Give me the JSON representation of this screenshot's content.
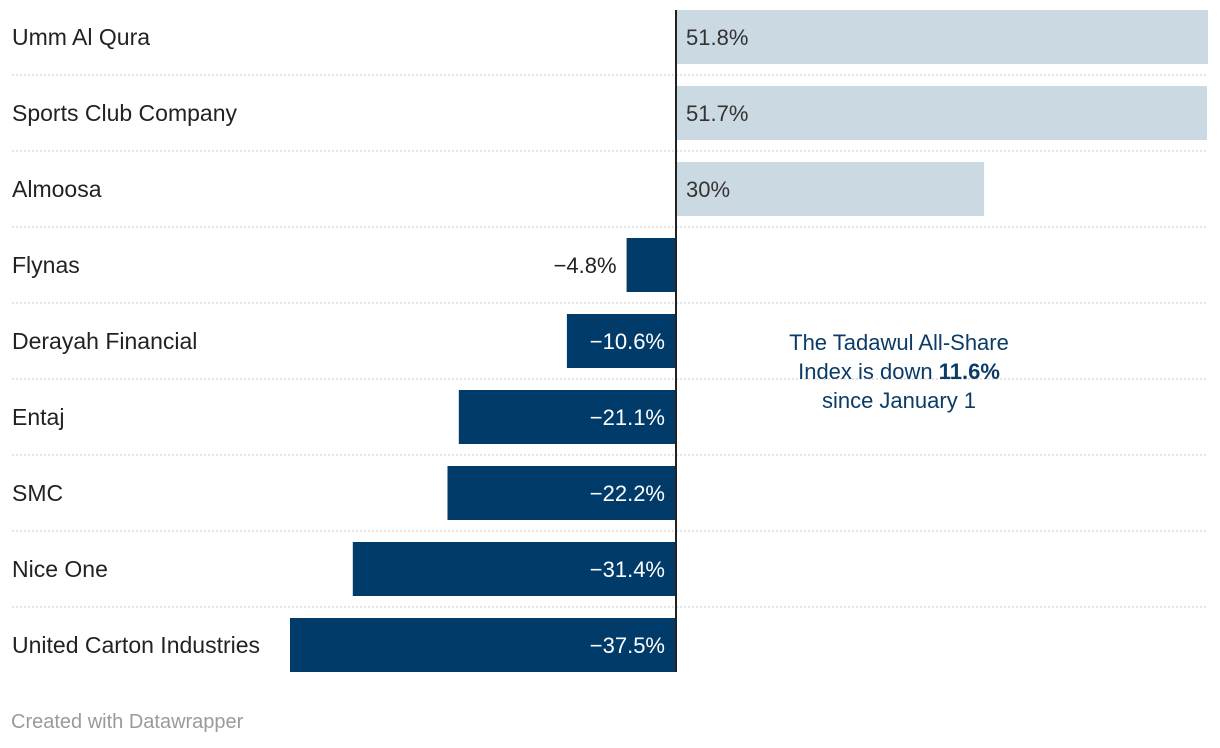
{
  "chart_data": {
    "type": "bar",
    "orientation": "horizontal",
    "unit": "%",
    "categories": [
      "Umm Al Qura",
      "Sports Club Company",
      "Almoosa",
      "Flynas",
      "Derayah Financial",
      "Entaj",
      "SMC",
      "Nice One",
      "United Carton Industries"
    ],
    "values": [
      51.8,
      51.7,
      30,
      -4.8,
      -10.6,
      -21.1,
      -22.2,
      -31.4,
      -37.5
    ],
    "value_labels": [
      "51.8%",
      "51.7%",
      "30%",
      "−4.8%",
      "−10.6%",
      "−21.1%",
      "−22.2%",
      "−31.4%",
      "−37.5%"
    ],
    "xlim": [
      -37.5,
      51.8
    ],
    "positive_color": "#cbd9e3",
    "negative_color": "#003b6a"
  },
  "annotation": {
    "line1": "The Tadawul All-Share",
    "line2_prefix": "Index is down ",
    "line2_value": "11.6%",
    "line3": "since January 1",
    "color": "#0b3b66"
  },
  "credit": "Created with Datawrapper"
}
